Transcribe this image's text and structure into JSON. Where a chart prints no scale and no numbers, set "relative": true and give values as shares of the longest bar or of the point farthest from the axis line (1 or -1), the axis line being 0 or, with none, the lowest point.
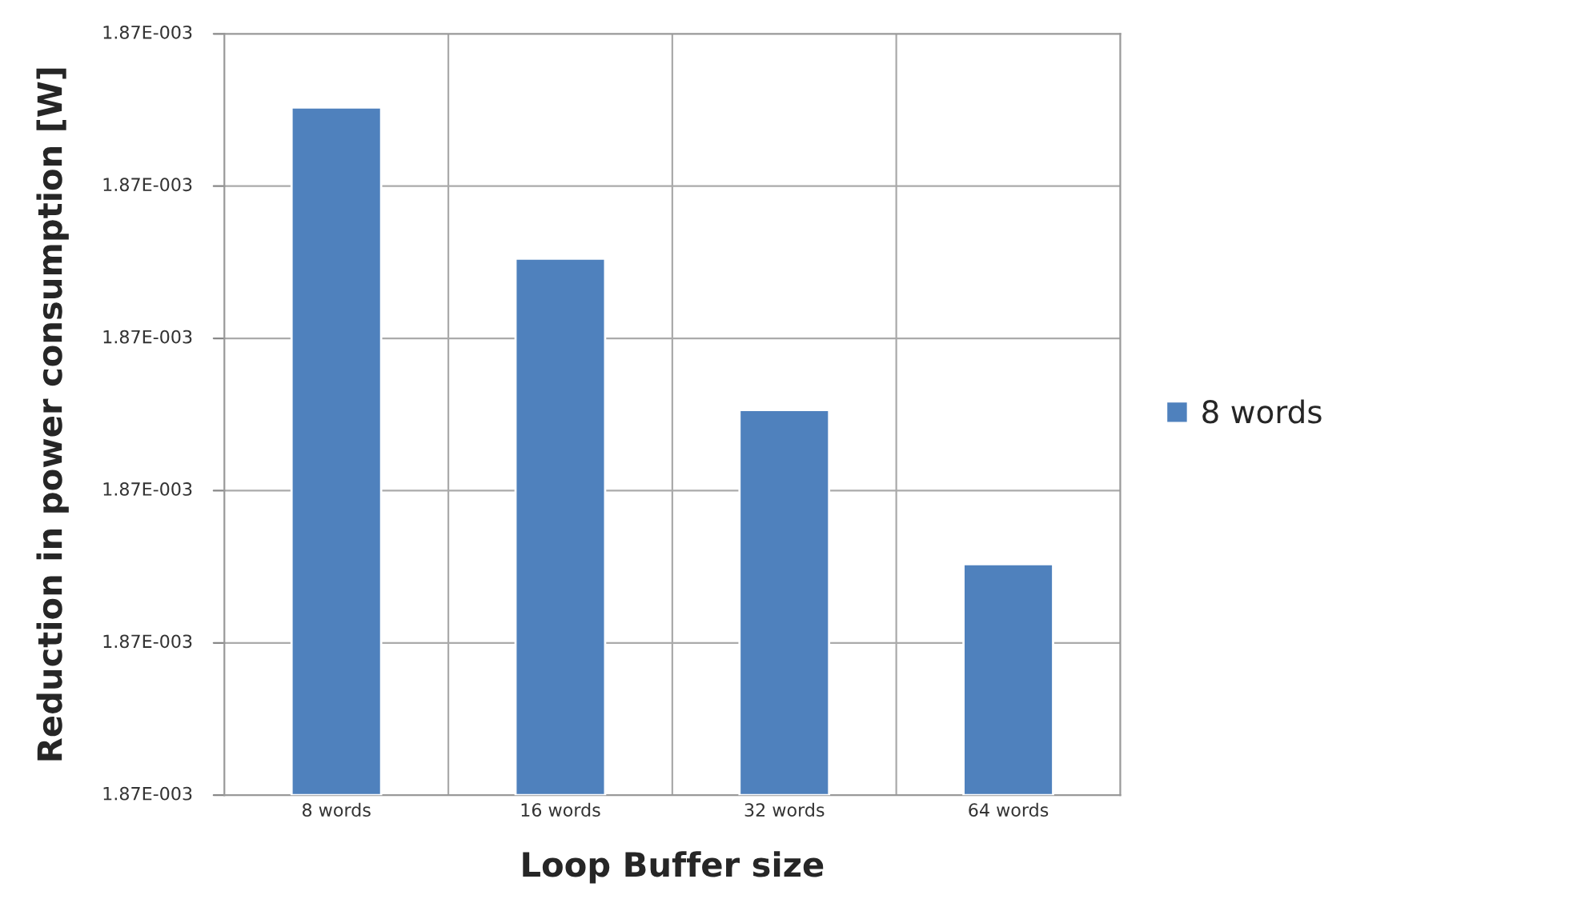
{
  "chart_data": {
    "type": "bar",
    "xlabel": "Loop Buffer size",
    "ylabel": "Reduction in power consumption [W]",
    "categories": [
      "8 words",
      "16 words",
      "32 words",
      "64 words"
    ],
    "series": [
      {
        "name": "8 words",
        "color": "#4f81bd",
        "values": [
          1,
          0.78,
          0.56,
          0.336
        ]
      }
    ],
    "relative": true,
    "annotations": [
      "1.87E-003",
      "1.87E-003",
      "1.87E-003",
      "1.87E-003",
      "1.87E-003",
      "1.87E-003"
    ],
    "grid": true,
    "legend": "right"
  }
}
